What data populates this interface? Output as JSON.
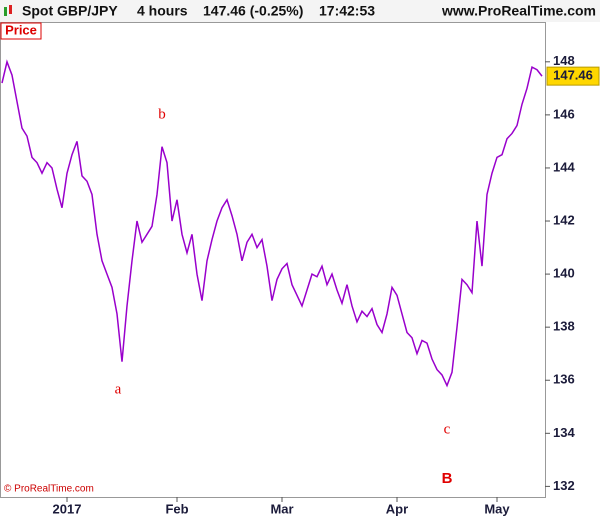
{
  "header": {
    "symbol": "Spot GBP/JPY",
    "timeframe": "4 hours",
    "quote": "147.46 (-0.25%)",
    "time": "17:42:53",
    "site": "www.ProRealTime.com"
  },
  "panel_label": "Price",
  "copyright": "© ProRealTime.com",
  "chart_data": {
    "type": "line",
    "categories": [
      null,
      null,
      null,
      null,
      null,
      null,
      null,
      null,
      null,
      null,
      null,
      null,
      null,
      "2017",
      null,
      null,
      null,
      null,
      null,
      null,
      null,
      null,
      null,
      null,
      null,
      null,
      null,
      null,
      null,
      null,
      null,
      null,
      null,
      null,
      null,
      "Feb",
      null,
      null,
      null,
      null,
      null,
      null,
      null,
      null,
      null,
      null,
      null,
      null,
      null,
      null,
      null,
      null,
      null,
      null,
      null,
      null,
      "Mar",
      null,
      null,
      null,
      null,
      null,
      null,
      null,
      null,
      null,
      null,
      null,
      null,
      null,
      null,
      null,
      null,
      null,
      null,
      null,
      null,
      null,
      null,
      "Apr",
      null,
      null,
      null,
      null,
      null,
      null,
      null,
      null,
      null,
      null,
      null,
      null,
      null,
      null,
      null,
      null,
      null,
      null,
      null,
      "May",
      null,
      null,
      null,
      null,
      null,
      null,
      null,
      null,
      null
    ],
    "series": [
      {
        "name": "Spot GBP/JPY",
        "color": "#9900cc",
        "values": [
          147.2,
          148,
          147.5,
          146.5,
          145.5,
          145.2,
          144.4,
          144.2,
          143.8,
          144.2,
          144,
          143.2,
          142.5,
          143.8,
          144.5,
          145,
          143.7,
          143.5,
          143,
          141.5,
          140.5,
          140,
          139.5,
          138.5,
          136.7,
          138.8,
          140.5,
          142,
          141.2,
          141.5,
          141.8,
          143,
          144.8,
          144.2,
          142,
          142.8,
          141.5,
          140.8,
          141.5,
          140,
          139,
          140.5,
          141.3,
          142,
          142.5,
          142.8,
          142.2,
          141.5,
          140.5,
          141.2,
          141.5,
          141,
          141.3,
          140.3,
          139,
          139.8,
          140.2,
          140.4,
          139.6,
          139.2,
          138.8,
          139.4,
          140,
          139.9,
          140.3,
          139.6,
          140,
          139.4,
          138.9,
          139.6,
          138.8,
          138.2,
          138.6,
          138.4,
          138.7,
          138.1,
          137.8,
          138.5,
          139.5,
          139.2,
          138.5,
          137.8,
          137.6,
          137,
          137.5,
          137.4,
          136.8,
          136.4,
          136.2,
          135.8,
          136.3,
          138,
          139.8,
          139.6,
          139.3,
          142,
          140.3,
          143,
          143.8,
          144.4,
          144.5,
          145.1,
          145.3,
          145.6,
          146.4,
          147,
          147.8,
          147.7,
          147.46
        ]
      }
    ],
    "ylim": [
      131.6,
      149.5
    ],
    "yticks": [
      132,
      134,
      136,
      138,
      140,
      142,
      144,
      146,
      148
    ],
    "annotations": [
      "a",
      "b",
      "c",
      "B"
    ]
  }
}
